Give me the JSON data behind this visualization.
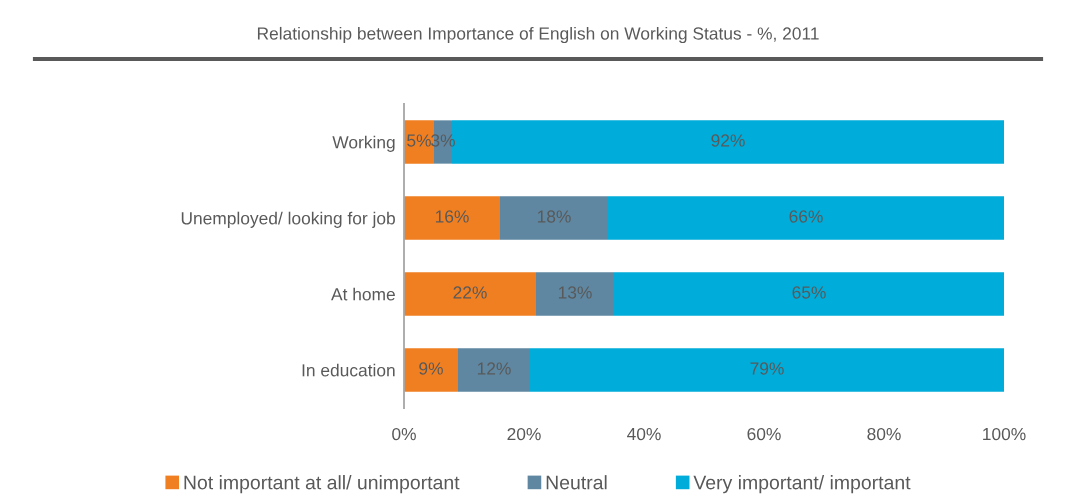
{
  "chart_data": {
    "type": "bar",
    "orientation": "horizontal",
    "stacked": true,
    "title": "Relationship between Importance of English on Working Status - %, 2011",
    "categories": [
      "Working",
      "Unemployed/ looking for job",
      "At home",
      "In education"
    ],
    "series": [
      {
        "name": "Not important at all/ unimportant",
        "color": "#f07f22",
        "values": [
          5,
          16,
          22,
          9
        ],
        "value_labels": [
          "5%",
          "16%",
          "22%",
          "9%"
        ]
      },
      {
        "name": "Neutral",
        "color": "#5f87a1",
        "values": [
          3,
          18,
          13,
          12
        ],
        "value_labels": [
          "3%",
          "18%",
          "13%",
          "12%"
        ]
      },
      {
        "name": "Very important/ important",
        "color": "#00acd9",
        "values": [
          92,
          66,
          65,
          79
        ],
        "value_labels": [
          "92%",
          "66%",
          "65%",
          "79%"
        ]
      }
    ],
    "xlim": [
      0,
      100
    ],
    "xticks": [
      {
        "value": 0,
        "label": "0%"
      },
      {
        "value": 20,
        "label": "20%"
      },
      {
        "value": 40,
        "label": "40%"
      },
      {
        "value": 60,
        "label": "60%"
      },
      {
        "value": 80,
        "label": "80%"
      },
      {
        "value": 100,
        "label": "100%"
      }
    ],
    "grid": false,
    "legend": "bottom"
  }
}
